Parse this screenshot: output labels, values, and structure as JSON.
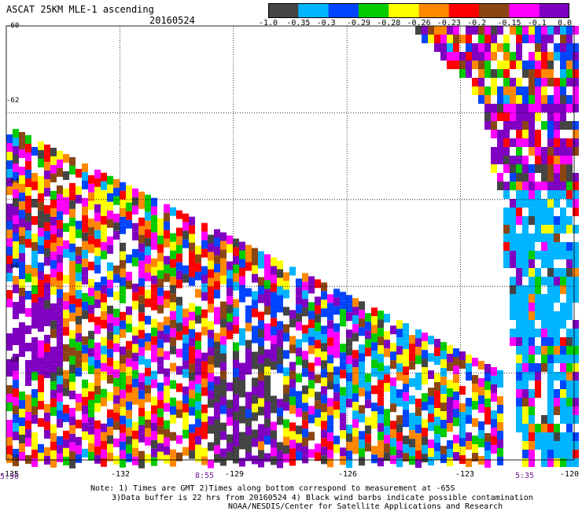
{
  "header": {
    "title": "ASCAT 25KM MLE-1 ascending",
    "date": "20160524"
  },
  "colorbar": {
    "colors": [
      "#444444",
      "#00b4ff",
      "#0044ff",
      "#00cc00",
      "#ffff00",
      "#ff8800",
      "#ff0000",
      "#8b4513",
      "#ff00ff",
      "#7f00c0"
    ],
    "labels": [
      "-1.0",
      "-0.35",
      "-0.3",
      "-0.29",
      "-0.28",
      "-0.26",
      "-0.23",
      "-0.2",
      "-0.15",
      "-0.1",
      "0.0"
    ]
  },
  "y_tick_labels": [
    "-60",
    "-62",
    "-64",
    "-66",
    "-68",
    "-70"
  ],
  "x_tick_labels": [
    "-132",
    "-129",
    "-126",
    "-123",
    "-120"
  ],
  "corner_labels": {
    "left_x": "-135"
  },
  "time_labels": [
    "5:56",
    "8:55",
    "5:35"
  ],
  "notes": [
    "Note: 1) Times are GMT 2)Times along bottom correspond to measurement at -65S",
    "3)Data buffer is 22 hrs from 20160524 4) Black wind barbs indicate possible contamination",
    "NOAA/NESDIS/Center for Satellite Applications and Research"
  ],
  "chart_data": {
    "type": "heatmap",
    "title": "ASCAT 25KM MLE-1 ascending",
    "subtitle": "20160524",
    "xlim": [
      -135,
      -120
    ],
    "ylim": [
      -70,
      -60
    ],
    "x_ticks": [
      -135,
      -132,
      -129,
      -126,
      -123,
      -120
    ],
    "y_ticks": [
      -60,
      -62,
      -64,
      -66,
      -68,
      -70
    ],
    "grid": true,
    "colorscale_bounds": [
      -1.0,
      -0.35,
      -0.3,
      -0.29,
      -0.28,
      -0.26,
      -0.23,
      -0.2,
      -0.15,
      -0.1,
      0.0
    ],
    "swaths": [
      {
        "description_time": "5:56",
        "region": "lower-left swath below diagonal edge"
      },
      {
        "description_time": "8:55",
        "region": "central swath"
      },
      {
        "description_time": "5:35",
        "region": "upper-right swath"
      }
    ]
  }
}
